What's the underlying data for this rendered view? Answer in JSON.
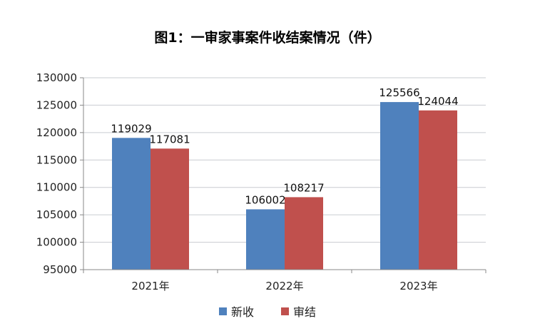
{
  "chart_data": {
    "type": "bar",
    "title": "图1：一审家事案件收结案情况（件）",
    "categories": [
      "2021年",
      "2022年",
      "2023年"
    ],
    "series": [
      {
        "name": "新收",
        "values": [
          119029,
          106002,
          125566
        ],
        "color": "#4f81bd"
      },
      {
        "name": "审结",
        "values": [
          117081,
          108217,
          124044
        ],
        "color": "#c0504d"
      }
    ],
    "xlabel": "",
    "ylabel": "",
    "ylim": [
      95000,
      130000
    ],
    "yticks": [
      95000,
      100000,
      105000,
      110000,
      115000,
      120000,
      125000,
      130000
    ],
    "grid": true,
    "legend_position": "bottom"
  }
}
